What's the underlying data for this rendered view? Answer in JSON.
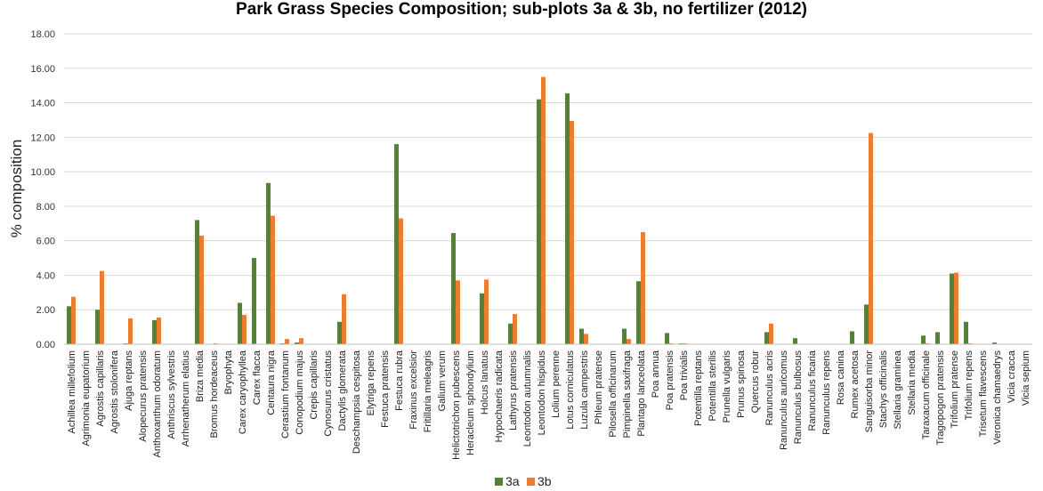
{
  "chart_data": {
    "type": "bar",
    "title": "Park Grass Species Composition; sub-plots 3a & 3b, no fertilizer (2012)",
    "xlabel": "",
    "ylabel": "% composition",
    "ylim": [
      0,
      18
    ],
    "yticks": [
      "0.00",
      "2.00",
      "4.00",
      "6.00",
      "8.00",
      "10.00",
      "12.00",
      "14.00",
      "16.00",
      "18.00"
    ],
    "grid": true,
    "legend_position": "bottom",
    "categories": [
      "Achillea millefolium",
      "Agrimonia eupatorium",
      "Agrostis capillaris",
      "Agrostis stolonifera",
      "Ajuga reptans",
      "Alopecurus pratensis",
      "Anthoxanthum odoratum",
      "Anthriscus sylvestris",
      "Arrhenatherum elatius",
      "Briza media",
      "Bromus hordeaceus",
      "Bryophyta",
      "Carex caryophyllea",
      "Carex flacca",
      "Centaura nigra",
      "Cerastium fontanum",
      "Conopodium majus",
      "Crepis capillaris",
      "Cynosurus cristatus",
      "Dactylis glomerata",
      "Deschampsia cespitosa",
      "Elytriga repens",
      "Festuca pratensis",
      "Festuca rubra",
      "Fraxinus excelsior",
      "Fritillaria meleagris",
      "Galium verum",
      "Helictotrichon pubescens",
      "Heracleum sphondylium",
      "Holcus lanatus",
      "Hypochaeris radicata",
      "Lathyrus pratensis",
      "Leontodon autumnalis",
      "Leontodon hispidus",
      "Lolium perenne",
      "Lotus corniculatus",
      "Luzula campestris",
      "Phleum pratense",
      "Pilosella officinarum",
      "Pimpinella saxifraga",
      "Plantago lanceolata",
      "Poa annua",
      "Poa pratensis",
      "Poa trivialis",
      "Potentilla reptans",
      "Potentilla sterilis",
      "Prunella vulgaris",
      "Prunus spinosa",
      "Quercus robur",
      "Ranunculus acris",
      "Ranunculus auricomus",
      "Ranunculus bulbosus",
      "Ranunculus ficaria",
      "Ranunculus repens",
      "Rosa canina",
      "Rumex acetosa",
      "Sanguisorba minor",
      "Stachys officinalis",
      "Stellaria graminea",
      "Stellaria media",
      "Taraxacum officinale",
      "Tragopogon pratensis",
      "Trifolium pratense",
      "Trifolium repens",
      "Trisetum flavescens",
      "Veronica chamaedrys",
      "Vicia cracca",
      "Vicia sepium"
    ],
    "series": [
      {
        "name": "3a",
        "color": "#548235",
        "values": [
          2.2,
          0,
          2.0,
          0,
          0.05,
          0,
          1.4,
          0,
          0,
          7.2,
          0,
          0,
          2.4,
          5.0,
          9.35,
          0.05,
          0.1,
          0,
          0,
          1.3,
          0,
          0,
          0,
          11.6,
          0,
          0,
          0,
          6.45,
          0,
          2.95,
          0,
          1.2,
          0,
          14.2,
          0,
          14.55,
          0.9,
          0,
          0,
          0.9,
          3.65,
          0,
          0.65,
          0.05,
          0,
          0,
          0,
          0,
          0,
          0.7,
          0,
          0.35,
          0,
          0,
          0,
          0.75,
          2.3,
          0,
          0,
          0,
          0.5,
          0.7,
          4.1,
          1.3,
          0,
          0.1,
          0,
          0
        ]
      },
      {
        "name": "3b",
        "color": "#ED7D31",
        "values": [
          2.75,
          0,
          4.25,
          0,
          1.5,
          0,
          1.55,
          0,
          0,
          6.3,
          0.05,
          0,
          1.7,
          0,
          7.45,
          0.3,
          0.35,
          0,
          0,
          2.9,
          0,
          0,
          0,
          7.3,
          0,
          0,
          0,
          3.7,
          0,
          3.75,
          0,
          1.75,
          0,
          15.5,
          0,
          12.95,
          0.6,
          0,
          0,
          0.3,
          6.5,
          0,
          0.05,
          0.05,
          0,
          0,
          0,
          0,
          0,
          1.2,
          0,
          0,
          0,
          0,
          0,
          0,
          12.25,
          0,
          0,
          0,
          0.05,
          0,
          4.15,
          0.05,
          0,
          0,
          0,
          0
        ]
      }
    ]
  }
}
